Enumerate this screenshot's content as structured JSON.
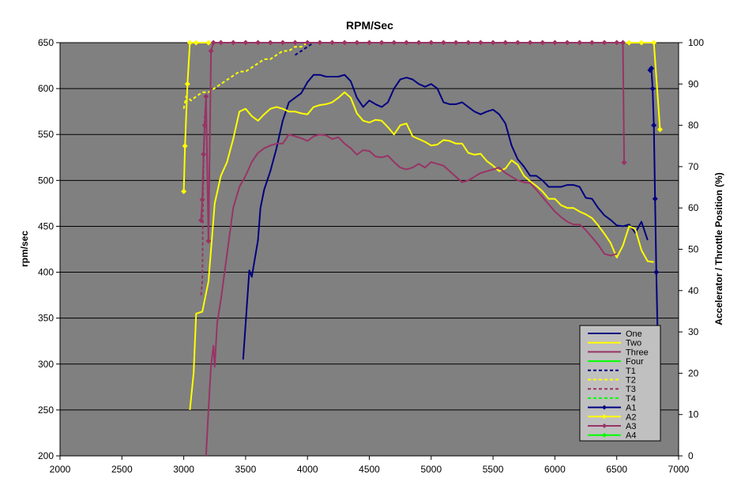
{
  "chart_data": {
    "type": "line",
    "title": "RPM/Sec",
    "xlabel": "",
    "ylabel": "rpm/sec",
    "y2label": "Accelerator / Throttle Position (%)",
    "xlim": [
      2000,
      7000
    ],
    "ylim": [
      200,
      650
    ],
    "y2lim": [
      0,
      100
    ],
    "x_ticks": [
      "2000",
      "2500",
      "3000",
      "3500",
      "4000",
      "4500",
      "5000",
      "5500",
      "6000",
      "6500",
      "7000"
    ],
    "y_ticks": [
      "200",
      "250",
      "300",
      "350",
      "400",
      "450",
      "500",
      "550",
      "600",
      "650"
    ],
    "y2_ticks": [
      "0",
      "10",
      "20",
      "30",
      "40",
      "50",
      "60",
      "70",
      "80",
      "90",
      "100"
    ],
    "grid": true,
    "legend_position": "bottom-right",
    "plot_background": "#808080",
    "series": [
      {
        "name": "One",
        "axis": "y",
        "color": "#000080",
        "style": "solid",
        "marker": false,
        "x": [
          3480,
          3530,
          3550,
          3600,
          3620,
          3650,
          3700,
          3750,
          3800,
          3850,
          3900,
          3950,
          4000,
          4050,
          4100,
          4150,
          4200,
          4250,
          4300,
          4350,
          4400,
          4450,
          4500,
          4550,
          4600,
          4650,
          4700,
          4750,
          4800,
          4850,
          4900,
          4950,
          5000,
          5050,
          5100,
          5150,
          5200,
          5250,
          5300,
          5350,
          5400,
          5450,
          5500,
          5550,
          5600,
          5650,
          5700,
          5750,
          5800,
          5850,
          5900,
          5950,
          6000,
          6050,
          6100,
          6150,
          6200,
          6250,
          6300,
          6350,
          6400,
          6450,
          6500,
          6550,
          6600,
          6650,
          6700,
          6750
        ],
        "values": [
          305,
          402,
          395,
          435,
          470,
          490,
          510,
          535,
          565,
          585,
          590,
          595,
          607,
          615,
          615,
          613,
          613,
          613,
          615,
          608,
          590,
          580,
          587,
          583,
          580,
          585,
          600,
          610,
          612,
          610,
          605,
          602,
          605,
          600,
          585,
          583,
          583,
          585,
          580,
          575,
          572,
          575,
          577,
          572,
          562,
          538,
          523,
          515,
          505,
          505,
          500,
          493,
          493,
          493,
          495,
          495,
          493,
          481,
          480,
          470,
          462,
          457,
          451,
          450,
          452,
          443,
          455,
          435
        ]
      },
      {
        "name": "Two",
        "axis": "y",
        "color": "#ffff00",
        "style": "solid",
        "marker": false,
        "x": [
          3050,
          3080,
          3100,
          3150,
          3200,
          3250,
          3300,
          3350,
          3400,
          3450,
          3500,
          3550,
          3600,
          3650,
          3700,
          3750,
          3800,
          3850,
          3900,
          3950,
          4000,
          4050,
          4100,
          4150,
          4200,
          4250,
          4300,
          4350,
          4400,
          4450,
          4500,
          4550,
          4600,
          4650,
          4700,
          4750,
          4800,
          4850,
          4900,
          4950,
          5000,
          5050,
          5100,
          5150,
          5200,
          5250,
          5300,
          5350,
          5400,
          5450,
          5500,
          5550,
          5600,
          5650,
          5700,
          5750,
          5800,
          5850,
          5900,
          5950,
          6000,
          6050,
          6100,
          6150,
          6200,
          6250,
          6300,
          6350,
          6400,
          6450,
          6500,
          6550,
          6600,
          6650,
          6700,
          6750,
          6800
        ],
        "values": [
          250,
          290,
          355,
          357,
          390,
          475,
          505,
          520,
          545,
          575,
          578,
          570,
          565,
          572,
          578,
          580,
          578,
          575,
          575,
          573,
          572,
          580,
          582,
          583,
          585,
          590,
          596,
          590,
          573,
          565,
          563,
          566,
          565,
          558,
          550,
          560,
          562,
          548,
          545,
          542,
          538,
          539,
          544,
          543,
          540,
          540,
          530,
          528,
          529,
          521,
          516,
          510,
          513,
          522,
          517,
          505,
          499,
          494,
          488,
          480,
          480,
          473,
          470,
          470,
          466,
          463,
          459,
          451,
          442,
          432,
          416,
          429,
          450,
          447,
          424,
          412,
          411
        ]
      },
      {
        "name": "Three",
        "axis": "y",
        "color": "#993366",
        "style": "solid",
        "marker": false,
        "x": [
          3180,
          3200,
          3220,
          3240,
          3250,
          3270,
          3300,
          3350,
          3400,
          3450,
          3500,
          3550,
          3600,
          3650,
          3700,
          3750,
          3800,
          3850,
          3900,
          3950,
          4000,
          4050,
          4100,
          4150,
          4200,
          4250,
          4300,
          4350,
          4400,
          4450,
          4500,
          4550,
          4600,
          4650,
          4700,
          4750,
          4800,
          4850,
          4900,
          4950,
          5000,
          5050,
          5100,
          5150,
          5200,
          5250,
          5300,
          5350,
          5400,
          5450,
          5500,
          5550,
          5600,
          5650,
          5700,
          5750,
          5800,
          5850,
          5900,
          5950,
          6000,
          6050,
          6100,
          6150,
          6200,
          6250,
          6300,
          6350,
          6400,
          6450,
          6500
        ],
        "values": [
          200,
          250,
          298,
          320,
          297,
          345,
          370,
          420,
          470,
          493,
          505,
          520,
          530,
          535,
          538,
          540,
          540,
          550,
          548,
          546,
          543,
          548,
          550,
          549,
          545,
          547,
          540,
          535,
          528,
          533,
          532,
          526,
          525,
          527,
          520,
          514,
          512,
          514,
          518,
          514,
          520,
          518,
          516,
          510,
          504,
          498,
          500,
          504,
          508,
          510,
          512,
          514,
          508,
          504,
          500,
          498,
          497,
          490,
          482,
          474,
          466,
          460,
          455,
          452,
          452,
          446,
          438,
          430,
          420,
          418,
          420
        ]
      },
      {
        "name": "Four",
        "axis": "y",
        "color": "#00ff00",
        "style": "solid",
        "marker": false,
        "x": [],
        "values": []
      },
      {
        "name": "T1",
        "axis": "y2",
        "color": "#000080",
        "style": "dashed",
        "marker": false,
        "x": [
          3900,
          3950,
          4000,
          4050
        ],
        "values": [
          97,
          98,
          99,
          100
        ]
      },
      {
        "name": "T2",
        "axis": "y2",
        "color": "#ffff00",
        "style": "dashed",
        "marker": false,
        "x": [
          3000,
          3020,
          3060,
          3100,
          3150,
          3200,
          3250,
          3300,
          3350,
          3400,
          3450,
          3500,
          3550,
          3600,
          3650,
          3700,
          3750,
          3800,
          3850,
          3900,
          3950,
          4000,
          4050
        ],
        "values": [
          84,
          87,
          86,
          87,
          88,
          88,
          89,
          90,
          91,
          92,
          93,
          93,
          94,
          95,
          96,
          96,
          97,
          98,
          98,
          99,
          99,
          100,
          100
        ]
      },
      {
        "name": "T3",
        "axis": "y",
        "color": "#993366",
        "style": "dashed",
        "marker": false,
        "x": [
          3140,
          3150,
          3155,
          3160,
          3170,
          3180
        ],
        "values": [
          375,
          390,
          470,
          520,
          570,
          585
        ]
      },
      {
        "name": "T4",
        "axis": "y",
        "color": "#00ff00",
        "style": "dashed",
        "marker": false,
        "x": [],
        "values": []
      },
      {
        "name": "A1",
        "axis": "y",
        "color": "#000080",
        "style": "solid",
        "marker": true,
        "x": [
          6770,
          6780,
          6790,
          6800,
          6810,
          6820,
          6830
        ],
        "values": [
          620,
          622,
          600,
          560,
          480,
          400,
          335
        ]
      },
      {
        "name": "A2",
        "axis": "y2",
        "color": "#ffff00",
        "style": "solid",
        "marker": true,
        "x": [
          3000,
          3010,
          3030,
          3050,
          3100,
          3200,
          3300,
          3400,
          3500,
          3600,
          3700,
          3800,
          3900,
          4000,
          4100,
          4200,
          4300,
          4400,
          4500,
          4600,
          4700,
          4800,
          4900,
          5000,
          5100,
          5200,
          5300,
          5400,
          5500,
          5600,
          5700,
          5800,
          5900,
          6000,
          6100,
          6200,
          6300,
          6400,
          6500,
          6600,
          6700,
          6800,
          6850
        ],
        "values": [
          64,
          75,
          90,
          100,
          100,
          100,
          100,
          100,
          100,
          100,
          100,
          100,
          100,
          100,
          100,
          100,
          100,
          100,
          100,
          100,
          100,
          100,
          100,
          100,
          100,
          100,
          100,
          100,
          100,
          100,
          100,
          100,
          100,
          100,
          100,
          100,
          100,
          100,
          100,
          100,
          100,
          100,
          79
        ]
      },
      {
        "name": "A3",
        "axis": "y2",
        "color": "#993366",
        "style": "solid",
        "marker": true,
        "x": [
          3140,
          3150,
          3160,
          3170,
          3180,
          3200,
          3220,
          3240,
          3300,
          3400,
          3500,
          3600,
          3700,
          3800,
          3900,
          4000,
          4100,
          4200,
          4300,
          4400,
          4500,
          4600,
          4700,
          4800,
          4900,
          5000,
          5100,
          5200,
          5300,
          5400,
          5500,
          5600,
          5700,
          5800,
          5900,
          6000,
          6100,
          6200,
          6300,
          6400,
          6500,
          6550,
          6560
        ],
        "values": [
          57,
          62,
          73,
          80,
          87,
          52,
          98,
          100,
          100,
          100,
          100,
          100,
          100,
          100,
          100,
          100,
          100,
          100,
          100,
          100,
          100,
          100,
          100,
          100,
          100,
          100,
          100,
          100,
          100,
          100,
          100,
          100,
          100,
          100,
          100,
          100,
          100,
          100,
          100,
          100,
          100,
          100,
          71
        ]
      },
      {
        "name": "A4",
        "axis": "y2",
        "color": "#00ff00",
        "style": "solid",
        "marker": true,
        "x": [],
        "values": []
      }
    ]
  }
}
